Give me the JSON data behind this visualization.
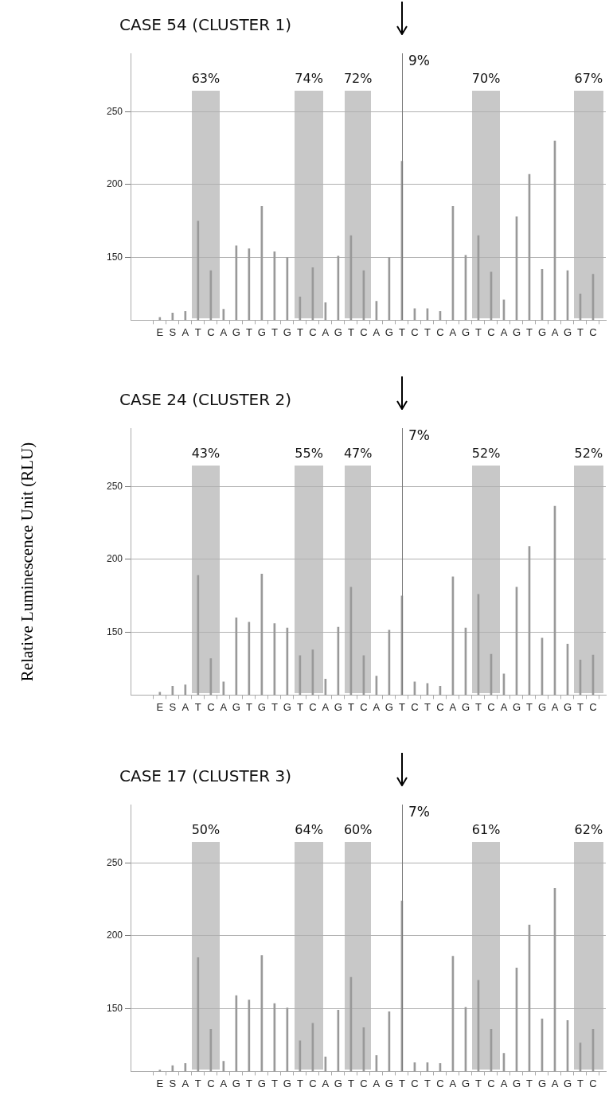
{
  "chart_data": [
    {
      "type": "bar",
      "title": "CASE 54 (CLUSTER 1)",
      "categories": [
        "E",
        "S",
        "A",
        "T",
        "C",
        "A",
        "G",
        "T",
        "G",
        "T",
        "G",
        "T",
        "C",
        "A",
        "G",
        "T",
        "C",
        "A",
        "G",
        "T",
        "C",
        "T",
        "C",
        "A",
        "G",
        "T",
        "C",
        "A",
        "G",
        "T",
        "G",
        "A",
        "G",
        "T",
        "C"
      ],
      "values": [
        109,
        112,
        113,
        175,
        141,
        114.5,
        158,
        156,
        185,
        154,
        150,
        123,
        143,
        119,
        151,
        165,
        141,
        120,
        150,
        216,
        115,
        115,
        113,
        185,
        151.5,
        165,
        140,
        121,
        178,
        207,
        142,
        230,
        141,
        125,
        138.5
      ],
      "color": "#999999",
      "ylim": [
        107,
        290
      ],
      "yticks": [
        150,
        200,
        250
      ],
      "grid": "y",
      "annotations": [
        "63%",
        "74%",
        "72%",
        "9%",
        "70%",
        "67%"
      ]
    },
    {
      "type": "bar",
      "title": "CASE 24 (CLUSTER 2)",
      "ylabel": "Relative Luminescence Unit (RLU)",
      "categories": [
        "E",
        "S",
        "A",
        "T",
        "C",
        "A",
        "G",
        "T",
        "G",
        "T",
        "G",
        "T",
        "C",
        "A",
        "G",
        "T",
        "C",
        "A",
        "G",
        "T",
        "C",
        "T",
        "C",
        "A",
        "G",
        "T",
        "C",
        "A",
        "G",
        "T",
        "G",
        "A",
        "G",
        "T",
        "C"
      ],
      "values": [
        109,
        113,
        114,
        189,
        132,
        116,
        160,
        157,
        190,
        156,
        153,
        134,
        138,
        118,
        153.5,
        181,
        134,
        120,
        151.5,
        175,
        116,
        115,
        113,
        188,
        153,
        176,
        135,
        121.5,
        181,
        209,
        146,
        236.5,
        142,
        131,
        134.5
      ],
      "color": "#999999",
      "ylim": [
        107,
        290
      ],
      "yticks": [
        150,
        200,
        250
      ],
      "grid": "y",
      "annotations": [
        "43%",
        "55%",
        "47%",
        "7%",
        "52%",
        "52%"
      ]
    },
    {
      "type": "bar",
      "title": "CASE 17 (CLUSTER 3)",
      "categories": [
        "E",
        "S",
        "A",
        "T",
        "C",
        "A",
        "G",
        "T",
        "G",
        "T",
        "G",
        "T",
        "C",
        "A",
        "G",
        "T",
        "C",
        "A",
        "G",
        "T",
        "C",
        "T",
        "C",
        "A",
        "G",
        "T",
        "C",
        "A",
        "G",
        "T",
        "G",
        "A",
        "G",
        "T",
        "C"
      ],
      "values": [
        108,
        111,
        112.5,
        185,
        136,
        114,
        159,
        156,
        186.5,
        153.5,
        150.5,
        128,
        140,
        117,
        149,
        171.5,
        137,
        118,
        148,
        224,
        113,
        113,
        112.5,
        186,
        151,
        169.5,
        136,
        119.5,
        178,
        207.5,
        143,
        232.5,
        142,
        126.5,
        136
      ],
      "color": "#999999",
      "ylim": [
        107,
        290
      ],
      "yticks": [
        150,
        200,
        250
      ],
      "grid": "y",
      "annotations": [
        "50%",
        "64%",
        "60%",
        "7%",
        "61%",
        "62%"
      ]
    }
  ]
}
